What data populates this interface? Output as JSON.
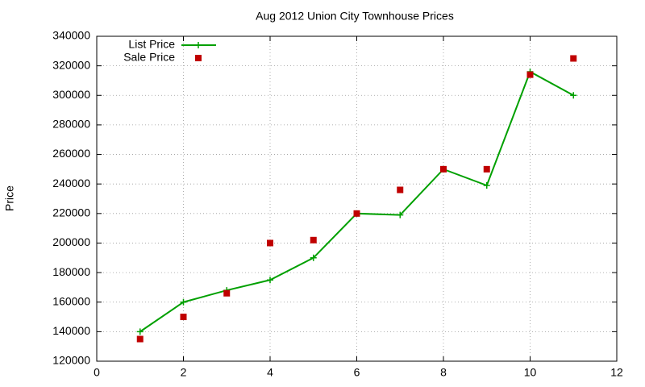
{
  "chart_data": {
    "type": "line",
    "title": "Aug 2012 Union City Townhouse Prices",
    "y_label": "Price",
    "x": [
      1,
      2,
      3,
      4,
      5,
      6,
      7,
      8,
      9,
      10,
      11
    ],
    "series": [
      {
        "name": "List Price",
        "color": "#00a000",
        "marker": "plus",
        "line": true,
        "values": [
          140000,
          160000,
          168000,
          175000,
          190000,
          220000,
          219000,
          250000,
          239000,
          316000,
          300000
        ]
      },
      {
        "name": "Sale Price",
        "color": "#c00000",
        "marker": "square",
        "line": false,
        "values": [
          135000,
          150000,
          166000,
          200000,
          202000,
          220000,
          236000,
          250000,
          250000,
          314000,
          325000
        ]
      }
    ],
    "xlim": [
      0,
      12
    ],
    "xticks": [
      0,
      2,
      4,
      6,
      8,
      10,
      12
    ],
    "ylim": [
      120000,
      340000
    ],
    "yticks": [
      120000,
      140000,
      160000,
      180000,
      200000,
      220000,
      240000,
      260000,
      280000,
      300000,
      320000,
      340000
    ],
    "grid": true,
    "legend": "top-left"
  }
}
